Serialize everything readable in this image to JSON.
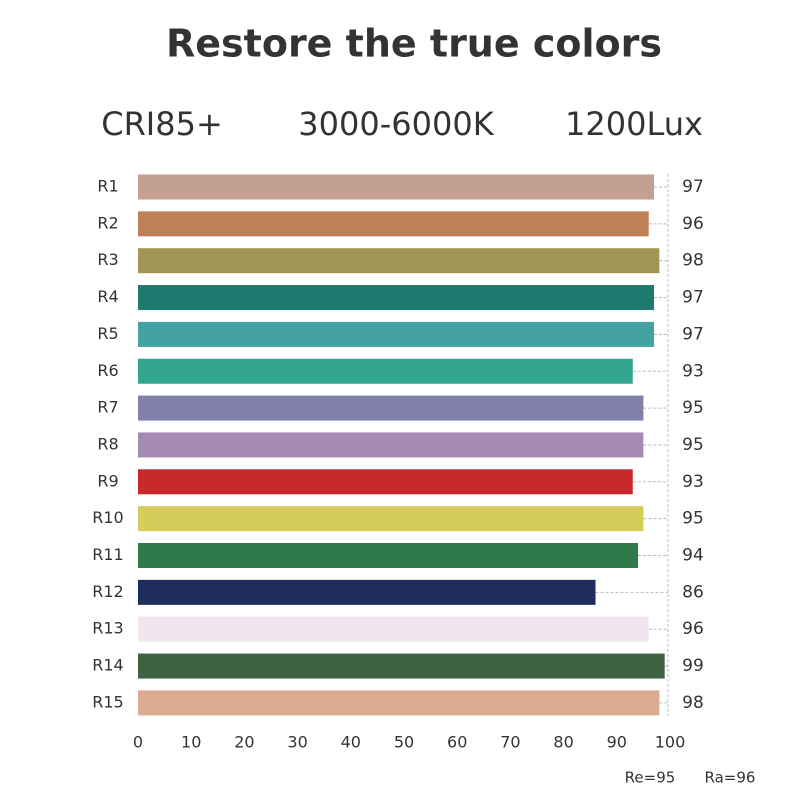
{
  "chart_data": {
    "type": "bar",
    "orientation": "horizontal",
    "title": "Restore the true colors",
    "specs": [
      "CRI85+",
      "3000-6000K",
      "1200Lux"
    ],
    "categories": [
      "R1",
      "R2",
      "R3",
      "R4",
      "R5",
      "R6",
      "R7",
      "R8",
      "R9",
      "R10",
      "R11",
      "R12",
      "R13",
      "R14",
      "R15"
    ],
    "values": [
      97,
      96,
      98,
      97,
      97,
      93,
      95,
      95,
      93,
      95,
      94,
      86,
      96,
      99,
      98
    ],
    "colors": [
      "#c4a092",
      "#bf7f57",
      "#a09555",
      "#1e7a6e",
      "#44a3a2",
      "#32a590",
      "#8080aa",
      "#a58ab5",
      "#c9282c",
      "#d4cd5a",
      "#2f7a4a",
      "#1e2d5e",
      "#f1e6ef",
      "#3f6340",
      "#dbab90"
    ],
    "xlim": [
      0,
      100
    ],
    "xticks": [
      0,
      10,
      20,
      30,
      40,
      50,
      60,
      70,
      80,
      90,
      100
    ],
    "annotations": [
      "Re=95",
      "Ra=96"
    ]
  }
}
